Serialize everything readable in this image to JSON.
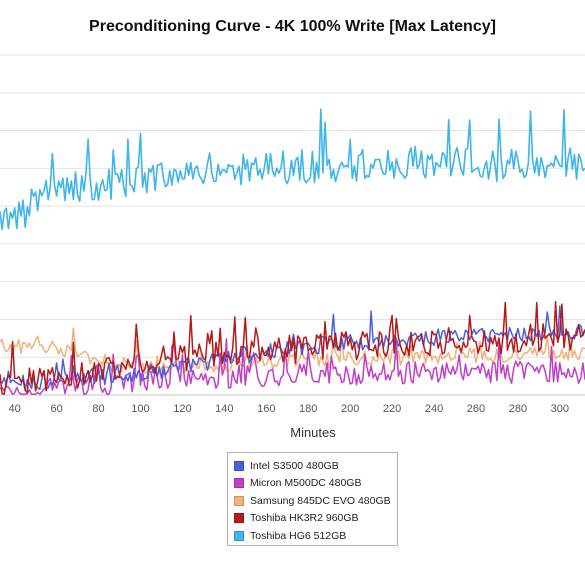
{
  "chart_data": {
    "type": "line",
    "title": "Preconditioning Curve - 4K 100% Write [Max Latency]",
    "xlabel": "Minutes",
    "ylabel": "",
    "x_ticks": [
      40,
      60,
      80,
      100,
      120,
      140,
      160,
      180,
      200,
      220,
      240,
      260,
      280,
      300
    ],
    "xlim": [
      33,
      312
    ],
    "ylim": [
      0,
      9
    ],
    "grid": true,
    "legend_position": "bottom-center",
    "series": [
      {
        "name": "Intel S3500 480GB",
        "color": "#4a5fe0",
        "base": [
          [
            33,
            0.3
          ],
          [
            60,
            0.35
          ],
          [
            100,
            0.55
          ],
          [
            140,
            0.95
          ],
          [
            180,
            1.3
          ],
          [
            220,
            1.45
          ],
          [
            260,
            1.6
          ],
          [
            312,
            1.65
          ]
        ],
        "amp": 0.22,
        "freq": 0.9
      },
      {
        "name": "Micron M500DC 480GB",
        "color": "#c23ec9",
        "base": [
          [
            33,
            0.05
          ],
          [
            70,
            0.22
          ],
          [
            120,
            0.45
          ],
          [
            180,
            0.55
          ],
          [
            250,
            0.6
          ],
          [
            312,
            0.6
          ]
        ],
        "amp": 0.3,
        "freq": 1.4
      },
      {
        "name": "Samsung 845DC EVO 480GB",
        "color": "#f0b27a",
        "base": [
          [
            33,
            1.3
          ],
          [
            60,
            1.25
          ],
          [
            90,
            0.75
          ],
          [
            120,
            0.75
          ],
          [
            180,
            0.9
          ],
          [
            250,
            1.05
          ],
          [
            312,
            1.1
          ]
        ],
        "amp": 0.2,
        "freq": 1.1
      },
      {
        "name": "Toshiba HK3R2 960GB",
        "color": "#b51a1a",
        "base": [
          [
            33,
            0.3
          ],
          [
            60,
            0.45
          ],
          [
            100,
            0.9
          ],
          [
            140,
            1.1
          ],
          [
            200,
            1.3
          ],
          [
            260,
            1.45
          ],
          [
            312,
            1.55
          ]
        ],
        "amp": 0.38,
        "freq": 1.0
      },
      {
        "name": "Toshiba HG6 512GB",
        "color": "#3fb5e8",
        "base": [
          [
            33,
            4.5
          ],
          [
            45,
            4.8
          ],
          [
            50,
            5.3
          ],
          [
            80,
            5.6
          ],
          [
            120,
            5.8
          ],
          [
            160,
            6.0
          ],
          [
            200,
            6.1
          ],
          [
            260,
            6.1
          ],
          [
            312,
            6.1
          ]
        ],
        "amp": 0.45,
        "freq": 1.0
      }
    ]
  }
}
